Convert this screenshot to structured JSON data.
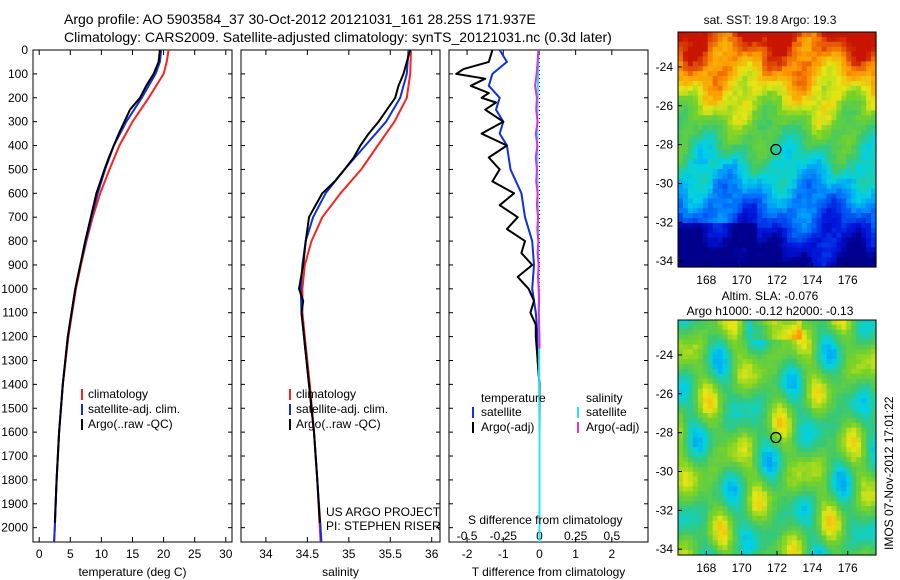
{
  "header": {
    "line1": "Argo profile: AO 5903584_37 30-Oct-2012 20121031_161 28.25S 171.937E",
    "line2": "Climatology: CARS2009. Satellite-adjusted climatology: synTS_20121031.nc (0.3d later)"
  },
  "colors": {
    "climatology": "#ff2020",
    "satellite": "#1030e0",
    "argo": "#000000",
    "argo_adj_salinity": "#e030e0",
    "satellite_salinity": "#20e8f0"
  },
  "depth_axis": {
    "ticks": [
      0,
      100,
      200,
      300,
      400,
      500,
      600,
      700,
      800,
      900,
      1000,
      1100,
      1200,
      1300,
      1400,
      1500,
      1600,
      1700,
      1800,
      1900,
      2000
    ],
    "range": [
      0,
      2060
    ]
  },
  "credits": {
    "line1": "US ARGO PROJECT",
    "line2": "PI: STEPHEN RISER"
  },
  "timestamp": "IMOS 07-Nov-2012 17:01:22",
  "chart_data": [
    {
      "type": "line",
      "xlabel": "temperature (deg C)",
      "ylabel": "",
      "xlim": [
        -1,
        31
      ],
      "ylim": [
        0,
        2060
      ],
      "x_ticks": [
        0,
        5,
        10,
        15,
        20,
        25,
        30
      ],
      "legend": {
        "placement": "bottom-center",
        "entries": [
          "climatology",
          "satellite-adj. clim.",
          "Argo(..raw -QC)"
        ]
      },
      "series": [
        {
          "name": "climatology",
          "color": "#ff2020",
          "depth": [
            0,
            50,
            100,
            200,
            300,
            400,
            500,
            600,
            700,
            800,
            900,
            1000,
            1200,
            1400,
            1600,
            1800,
            2000,
            2060
          ],
          "values": [
            20.8,
            20.5,
            20.0,
            17.6,
            15.0,
            12.9,
            11.3,
            9.8,
            8.6,
            7.6,
            6.7,
            5.9,
            4.7,
            3.8,
            3.2,
            2.8,
            2.5,
            2.4
          ]
        },
        {
          "name": "satellite-adj. clim.",
          "color": "#1030e0",
          "depth": [
            0,
            50,
            100,
            200,
            300,
            400,
            500,
            600,
            700,
            800,
            900,
            1000,
            1200,
            1400,
            1600,
            1800,
            2000,
            2060
          ],
          "values": [
            19.6,
            19.4,
            18.7,
            16.5,
            14.0,
            12.0,
            10.6,
            9.4,
            8.4,
            7.5,
            6.6,
            5.8,
            4.6,
            3.8,
            3.2,
            2.8,
            2.5,
            2.4
          ]
        },
        {
          "name": "Argo(..raw -QC)",
          "color": "#000000",
          "depth": [
            0,
            50,
            100,
            150,
            200,
            250,
            300,
            350,
            400,
            450,
            500,
            600,
            700,
            800,
            900,
            1000,
            1200,
            1400,
            1600,
            1800,
            1980
          ],
          "values": [
            19.4,
            19.2,
            18.4,
            17.2,
            16.2,
            14.6,
            13.7,
            12.8,
            12.0,
            11.2,
            10.5,
            9.2,
            8.3,
            7.4,
            6.6,
            5.8,
            4.6,
            3.8,
            3.2,
            2.8,
            2.5
          ]
        }
      ]
    },
    {
      "type": "line",
      "xlabel": "salinity",
      "ylabel": "",
      "xlim": [
        33.7,
        36.1
      ],
      "ylim": [
        0,
        2060
      ],
      "x_ticks": [
        34,
        34.5,
        35,
        35.5,
        36
      ],
      "legend": {
        "placement": "bottom-center",
        "entries": [
          "climatology",
          "satellite-adj. clim.",
          "Argo(..raw -QC)"
        ]
      },
      "series": [
        {
          "name": "climatology",
          "color": "#ff2020",
          "depth": [
            0,
            100,
            200,
            300,
            400,
            500,
            600,
            700,
            800,
            900,
            1000,
            1100,
            1200,
            1400,
            1600,
            1800,
            2000,
            2060
          ],
          "values": [
            35.75,
            35.74,
            35.7,
            35.55,
            35.35,
            35.15,
            34.9,
            34.68,
            34.55,
            34.47,
            34.44,
            34.44,
            34.47,
            34.53,
            34.58,
            34.62,
            34.65,
            34.66
          ]
        },
        {
          "name": "satellite-adj. clim.",
          "color": "#1030e0",
          "depth": [
            0,
            100,
            200,
            300,
            400,
            500,
            600,
            700,
            800,
            900,
            1000,
            1100,
            1200,
            1400,
            1600,
            1800,
            2000,
            2060
          ],
          "values": [
            35.72,
            35.7,
            35.62,
            35.45,
            35.2,
            34.95,
            34.72,
            34.57,
            34.48,
            34.44,
            34.42,
            34.43,
            34.46,
            34.52,
            34.58,
            34.62,
            34.66,
            34.67
          ]
        },
        {
          "name": "Argo(..raw -QC)",
          "color": "#000000",
          "depth": [
            0,
            50,
            100,
            150,
            200,
            250,
            300,
            350,
            400,
            450,
            500,
            550,
            600,
            650,
            700,
            800,
            900,
            1000,
            1050,
            1100,
            1200,
            1400,
            1600,
            1800,
            1980
          ],
          "values": [
            35.74,
            35.7,
            35.66,
            35.6,
            35.56,
            35.46,
            35.36,
            35.24,
            35.14,
            35.06,
            34.95,
            34.83,
            34.68,
            34.6,
            34.52,
            34.48,
            34.45,
            34.4,
            34.45,
            34.43,
            34.46,
            34.52,
            34.58,
            34.62,
            34.65
          ]
        }
      ]
    },
    {
      "type": "line",
      "xlabel": "T difference from climatology",
      "secondary_xlabel": "S difference from climatology",
      "ylabel": "",
      "xlim": [
        -2.5,
        3.0
      ],
      "ylim": [
        0,
        2060
      ],
      "x_ticks": [
        -2,
        -1,
        0,
        1,
        2
      ],
      "secondary_x_ticks": [
        "-0.5",
        "-0.25",
        "0",
        "0.25",
        "0.5"
      ],
      "legend": {
        "placement": "bottom-center",
        "groups": [
          {
            "title": "temperature",
            "entries": [
              "satellite",
              "Argo(-adj)"
            ]
          },
          {
            "title": "salinity",
            "entries": [
              "satellite",
              "Argo(-adj)"
            ]
          }
        ]
      },
      "series": [
        {
          "name": "satellite",
          "group": "temperature",
          "color": "#1030e0",
          "depth": [
            0,
            50,
            100,
            150,
            200,
            250,
            300,
            350,
            400,
            500,
            600,
            700,
            800,
            900,
            1000,
            1100,
            1200,
            1300,
            1400,
            1600,
            1800,
            2000,
            2060
          ],
          "values": [
            -1.1,
            -0.9,
            -1.3,
            -1.4,
            -1.1,
            -1.2,
            -1.0,
            -1.1,
            -0.9,
            -0.8,
            -0.5,
            -0.4,
            -0.2,
            -0.15,
            -0.2,
            -0.1,
            -0.05,
            -0.05,
            0,
            0,
            0,
            0,
            0
          ]
        },
        {
          "name": "Argo(-adj)",
          "group": "temperature",
          "color": "#000000",
          "depth": [
            0,
            50,
            80,
            100,
            120,
            150,
            180,
            200,
            220,
            250,
            300,
            350,
            400,
            450,
            500,
            550,
            600,
            650,
            700,
            750,
            800,
            850,
            900,
            950,
            1000,
            1050,
            1100,
            1150,
            1200,
            1400,
            1600,
            1800,
            1980
          ],
          "values": [
            -1.3,
            -1.4,
            -2.1,
            -2.3,
            -1.5,
            -1.9,
            -1.4,
            -1.6,
            -1.2,
            -1.5,
            -1.0,
            -1.6,
            -0.9,
            -1.4,
            -1.1,
            -1.3,
            -0.7,
            -1.1,
            -0.6,
            -0.9,
            -0.4,
            -0.5,
            -0.2,
            -0.6,
            -0.3,
            -0.15,
            -0.25,
            -0.1,
            -0.1,
            0,
            0,
            0,
            0
          ]
        },
        {
          "name": "satellite",
          "group": "salinity",
          "color": "#20e8f0",
          "depth": [
            0,
            50,
            100,
            200,
            300,
            400,
            500,
            600,
            700,
            800,
            900,
            1000,
            1100,
            1200,
            1400,
            1600,
            1800,
            2000,
            2060
          ],
          "values": [
            -0.02,
            -0.03,
            -0.04,
            -0.05,
            -0.06,
            -0.06,
            -0.06,
            -0.05,
            -0.04,
            -0.03,
            -0.03,
            -0.02,
            -0.02,
            -0.01,
            -0.01,
            0,
            0,
            0,
            0
          ]
        },
        {
          "name": "Argo(-adj)",
          "group": "salinity",
          "color": "#e030e0",
          "depth": [
            0,
            50,
            100,
            150,
            200,
            250,
            300,
            350,
            400,
            450,
            500,
            550,
            600,
            650,
            700,
            750,
            800,
            850,
            900,
            950,
            1000,
            1050,
            1100,
            1150,
            1200,
            1250
          ],
          "values": [
            -0.03,
            -0.05,
            -0.08,
            -0.12,
            -0.07,
            -0.09,
            -0.05,
            -0.1,
            -0.06,
            -0.1,
            -0.07,
            -0.09,
            -0.05,
            -0.07,
            -0.04,
            -0.06,
            -0.03,
            -0.05,
            -0.02,
            -0.04,
            -0.02,
            -0.01,
            -0.02,
            -0.01,
            0,
            0
          ]
        }
      ]
    },
    {
      "type": "heatmap",
      "title": "sat. SST: 19.8 Argo: 19.3",
      "xlim": [
        166.4,
        177.6
      ],
      "ylim": [
        -34.3,
        -22.2
      ],
      "x_ticks": [
        168,
        170,
        172,
        174,
        176
      ],
      "y_ticks": [
        -24,
        -26,
        -28,
        -30,
        -32,
        -34
      ],
      "marker": {
        "lon": 171.937,
        "lat": -28.25
      },
      "value_range": [
        16,
        24
      ]
    },
    {
      "type": "heatmap",
      "title": "Altim. SLA: -0.076",
      "subtitle": "Argo h1000: -0.12 h2000: -0.13",
      "xlim": [
        166.4,
        177.6
      ],
      "ylim": [
        -34.3,
        -22.2
      ],
      "x_ticks": [
        168,
        170,
        172,
        174,
        176
      ],
      "y_ticks": [
        -24,
        -26,
        -28,
        -30,
        -32,
        -34
      ],
      "marker": {
        "lon": 171.937,
        "lat": -28.25
      },
      "value_range": [
        -0.4,
        0.4
      ]
    }
  ]
}
